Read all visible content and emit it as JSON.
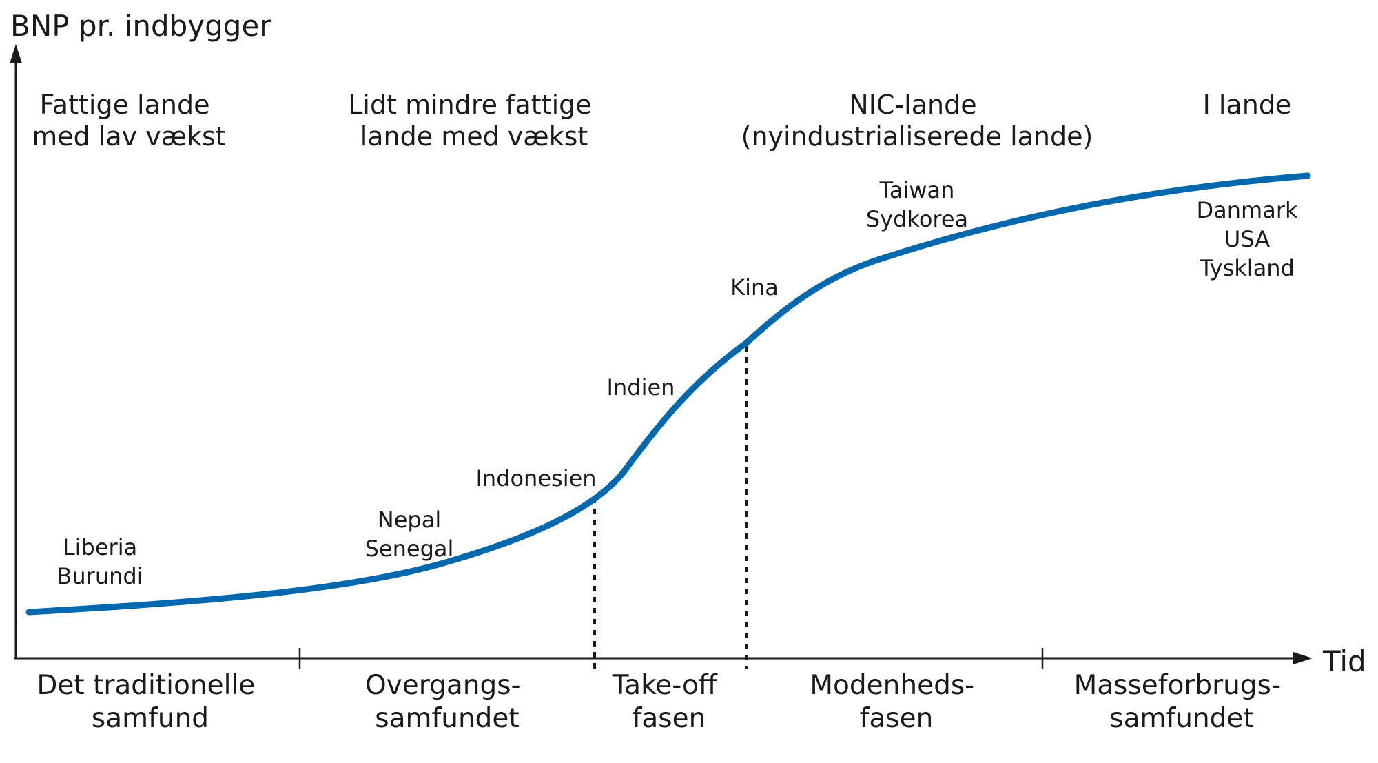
{
  "y_axis_title": "BNP pr. indbygger",
  "x_axis_title": "Tid",
  "country_groups": [
    {
      "line1": "Fattige lande",
      "line2": "med lav vækst"
    },
    {
      "line1": "Lidt mindre fattige",
      "line2": "lande med vækst"
    },
    {
      "line1": "NIC-lande",
      "line2": "(nyindustrialiserede lande)"
    },
    {
      "line1": "I lande",
      "line2": ""
    }
  ],
  "countries": {
    "liberia": "Liberia",
    "burundi": "Burundi",
    "nepal": "Nepal",
    "senegal": "Senegal",
    "indonesien": "Indonesien",
    "indien": "Indien",
    "kina": "Kina",
    "taiwan": "Taiwan",
    "sydkorea": "Sydkorea",
    "danmark": "Danmark",
    "usa": "USA",
    "tyskland": "Tyskland"
  },
  "stages": [
    {
      "line1": "Det traditionelle",
      "line2": "samfund"
    },
    {
      "line1": "Overgangs-",
      "line2": "samfundet"
    },
    {
      "line1": "Take-off",
      "line2": "fasen"
    },
    {
      "line1": "Modenheds-",
      "line2": "fasen"
    },
    {
      "line1": "Masseforbrugs-",
      "line2": "samfundet"
    }
  ],
  "colors": {
    "curve": "#0068ad",
    "axis": "#1a1a1a"
  }
}
